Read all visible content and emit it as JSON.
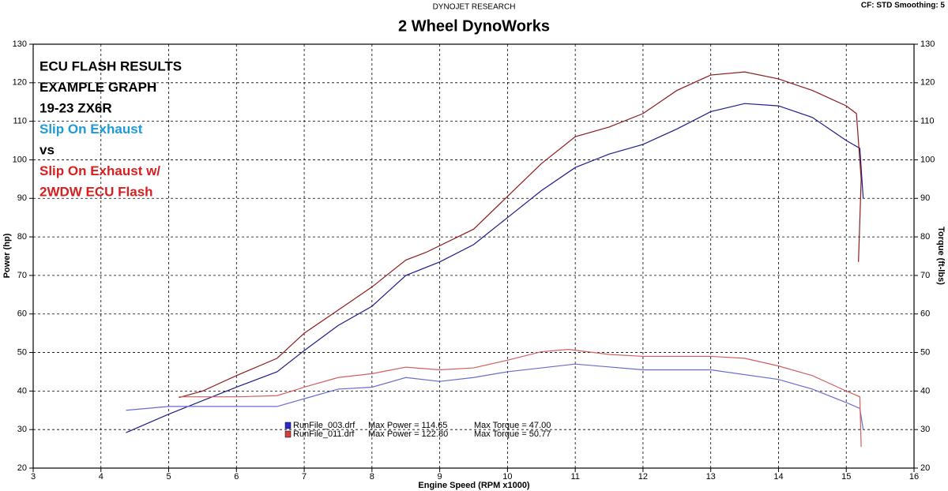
{
  "chart_data": {
    "type": "line",
    "header": "DYNOJET RESEARCH",
    "title": "2 Wheel DynoWorks",
    "settings_label": "CF: STD  Smoothing: 5",
    "xlabel": "Engine Speed (RPM x1000)",
    "ylabel": "Power (hp)",
    "y2label": "Torque (ft-lbs)",
    "xlim": [
      3,
      16
    ],
    "xticks": [
      3,
      4,
      5,
      6,
      7,
      8,
      9,
      10,
      11,
      12,
      13,
      14,
      15,
      16
    ],
    "ylim": [
      20,
      130
    ],
    "yticks": [
      20,
      30,
      40,
      50,
      60,
      70,
      80,
      90,
      100,
      110,
      120,
      130
    ],
    "y2lim": [
      20,
      130
    ],
    "y2ticks": [
      20,
      30,
      40,
      50,
      60,
      70,
      80,
      90,
      100,
      110,
      120,
      130
    ],
    "grid": true,
    "annotations": [
      {
        "text": "ECU FLASH RESULTS",
        "color": "#000000"
      },
      {
        "text": "EXAMPLE GRAPH",
        "color": "#000000"
      },
      {
        "text": "19-23 ZX6R",
        "color": "#000000"
      },
      {
        "text": "Slip On Exhaust",
        "color": "#1e9ad6"
      },
      {
        "text": "vs",
        "color": "#000000"
      },
      {
        "text": "Slip On Exhaust w/",
        "color": "#d62020"
      },
      {
        "text": "2WDW ECU Flash",
        "color": "#d62020"
      }
    ],
    "legend": [
      {
        "file": "RunFile_003.drf",
        "power": "Max Power = 114.65",
        "torque": "Max Torque = 47.00",
        "color": "#2a2ad0"
      },
      {
        "file": "RunFile_011.drf",
        "power": "Max Power = 122.80",
        "torque": "Max Torque = 50.77",
        "color": "#d04040"
      }
    ],
    "series": [
      {
        "color": "#1c1c8a",
        "x": [
          4.37,
          5,
          5.5,
          6,
          6.6,
          7,
          7.5,
          8,
          8.5,
          9,
          9.5,
          10,
          10.5,
          11,
          11.5,
          12,
          12.5,
          13,
          13.5,
          14,
          14.5,
          15,
          15.2,
          15.25
        ],
        "values": [
          29.2,
          34,
          37.5,
          41,
          45,
          50.5,
          57,
          62,
          70,
          73.5,
          78,
          85,
          92,
          98,
          101.5,
          104,
          108,
          112.5,
          114.6,
          114,
          111,
          105,
          103,
          90
        ]
      },
      {
        "color": "#8c1c1c",
        "x": [
          5.15,
          5.5,
          6,
          6.6,
          7,
          7.5,
          8,
          8.5,
          8.8,
          9.5,
          10,
          10.5,
          11,
          11.5,
          12,
          12.5,
          13,
          13.5,
          14,
          14.5,
          15,
          15.15,
          15.22,
          15.18
        ],
        "values": [
          38.3,
          40,
          44,
          48.5,
          55,
          61,
          67,
          74,
          76,
          82,
          90.5,
          99,
          106,
          108.5,
          112,
          118,
          122,
          122.8,
          121,
          118,
          114,
          112,
          95,
          73.5
        ]
      },
      {
        "color": "#6a6ad0",
        "axis": "y2",
        "x": [
          4.37,
          5,
          6,
          6.6,
          7,
          7.5,
          8,
          8.5,
          9,
          9.5,
          10,
          11,
          12,
          13,
          14,
          14.5,
          15,
          15.2,
          15.25
        ],
        "values": [
          35,
          36,
          36,
          36,
          38,
          40.5,
          41,
          43.5,
          42.5,
          43.5,
          45,
          47,
          45.5,
          45.5,
          43,
          40.5,
          37,
          35.5,
          30
        ]
      },
      {
        "color": "#d06060",
        "axis": "y2",
        "x": [
          5.15,
          6,
          6.6,
          7,
          7.5,
          8,
          8.5,
          9,
          9.5,
          10,
          10.5,
          10.9,
          11.5,
          12,
          13,
          13.5,
          14,
          14.5,
          15,
          15.2,
          15.22
        ],
        "values": [
          38.5,
          38.5,
          38.8,
          41,
          43.5,
          44.5,
          46.2,
          45.5,
          46,
          48,
          50.2,
          50.8,
          49.5,
          49,
          49,
          48.5,
          46.5,
          44,
          40,
          38.5,
          25.5
        ]
      }
    ]
  }
}
